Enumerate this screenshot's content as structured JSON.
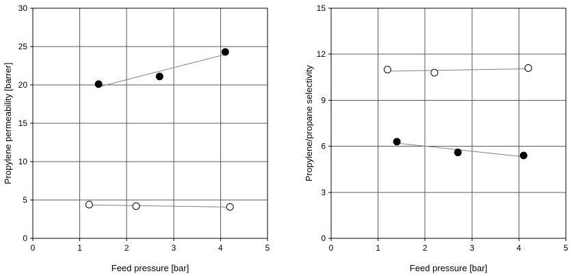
{
  "colors": {
    "grid": "#595959",
    "axis": "#000000",
    "trendline": "#808080",
    "marker_stroke": "#000000",
    "marker_fill": "#000000",
    "background": "#ffffff"
  },
  "chart_data": [
    {
      "type": "scatter",
      "title": "",
      "xlabel": "Feed pressure [bar]",
      "ylabel": "Propylene permeability [barrer]",
      "xlim": [
        0,
        5
      ],
      "ylim": [
        0,
        30
      ],
      "xticks": [
        0,
        1,
        2,
        3,
        4,
        5
      ],
      "yticks": [
        0,
        5,
        10,
        15,
        20,
        25,
        30
      ],
      "grid": true,
      "legend": "none",
      "series": [
        {
          "name": "filled",
          "marker": "filled-circle",
          "x": [
            1.4,
            2.7,
            4.1
          ],
          "y": [
            20.1,
            21.1,
            24.3
          ],
          "trendline": true
        },
        {
          "name": "open",
          "marker": "open-circle",
          "x": [
            1.2,
            2.2,
            4.2
          ],
          "y": [
            4.4,
            4.2,
            4.1
          ],
          "trendline": true
        }
      ]
    },
    {
      "type": "scatter",
      "title": "",
      "xlabel": "Feed pressure [bar]",
      "ylabel": "Propylene/propane selectivity",
      "xlim": [
        0,
        5
      ],
      "ylim": [
        0,
        15
      ],
      "xticks": [
        0,
        1,
        2,
        3,
        4,
        5
      ],
      "yticks": [
        0,
        3,
        6,
        9,
        12,
        15
      ],
      "grid": true,
      "legend": "none",
      "series": [
        {
          "name": "open",
          "marker": "open-circle",
          "x": [
            1.2,
            2.2,
            4.2
          ],
          "y": [
            11.0,
            10.8,
            11.1
          ],
          "trendline": true
        },
        {
          "name": "filled",
          "marker": "filled-circle",
          "x": [
            1.4,
            2.7,
            4.1
          ],
          "y": [
            6.3,
            5.6,
            5.4
          ],
          "trendline": true
        }
      ]
    }
  ]
}
